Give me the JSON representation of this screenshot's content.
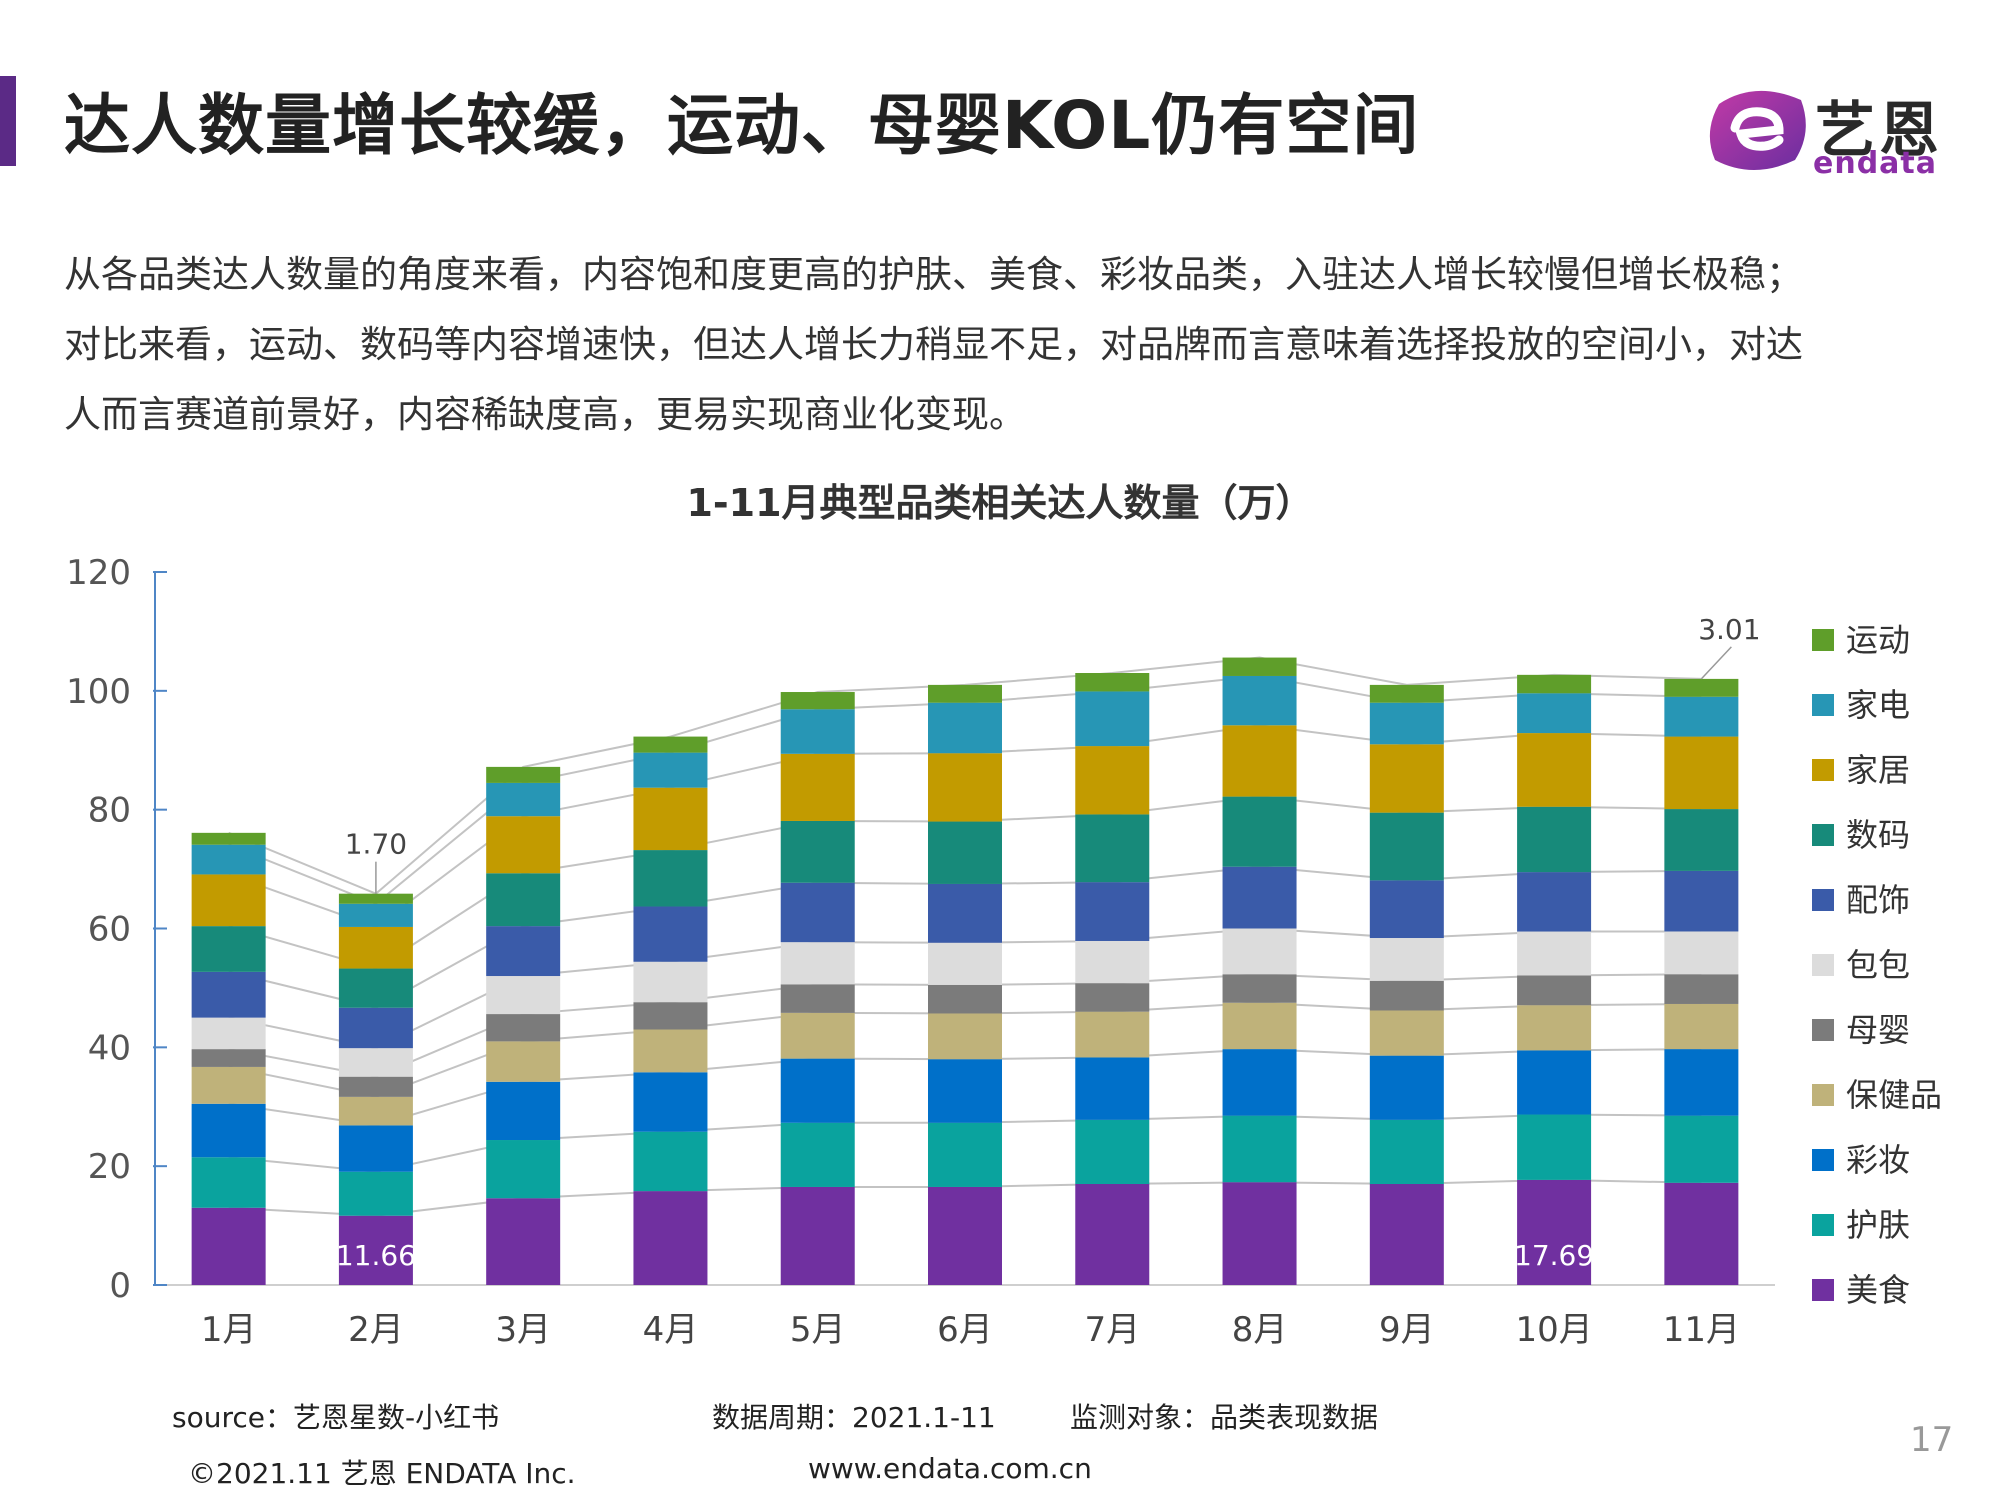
{
  "header": {
    "title": "达人数量增长较缓，运动、母婴KOL仍有空间",
    "logo_cn": "艺恩",
    "logo_en": "endata"
  },
  "description": [
    "从各品类达人数量的角度来看，内容饱和度更高的护肤、美食、彩妆品类，入驻达人增长较慢但增长极稳；",
    "对比来看，运动、数码等内容增速快，但达人增长力稍显不足，对品牌而言意味着选择投放的空间小，对达",
    "人而言赛道前景好，内容稀缺度高，更易实现商业化变现。"
  ],
  "chart_data": {
    "type": "bar",
    "stacked": true,
    "title": "1-11月典型品类相关达人数量（万）",
    "categories": [
      "1月",
      "2月",
      "3月",
      "4月",
      "5月",
      "6月",
      "7月",
      "8月",
      "9月",
      "10月",
      "11月"
    ],
    "ylim": [
      0,
      120
    ],
    "yticks": [
      "0",
      "20",
      "40",
      "60",
      "80",
      "100",
      "120"
    ],
    "series": [
      {
        "name": "美食",
        "color": "#7030a0",
        "values": [
          13.0,
          11.66,
          14.6,
          15.8,
          16.5,
          16.5,
          17.0,
          17.3,
          17.0,
          17.69,
          17.2
        ]
      },
      {
        "name": "护肤",
        "color": "#0aa39e",
        "values": [
          8.5,
          7.4,
          9.8,
          10.0,
          10.8,
          10.8,
          10.8,
          11.2,
          10.8,
          11.0,
          11.3
        ]
      },
      {
        "name": "彩妆",
        "color": "#0070c9",
        "values": [
          9.0,
          7.8,
          9.8,
          10.0,
          10.8,
          10.7,
          10.5,
          11.2,
          10.8,
          10.8,
          11.2
        ]
      },
      {
        "name": "保健品",
        "color": "#bfb27a",
        "values": [
          6.2,
          4.8,
          6.8,
          7.2,
          7.7,
          7.7,
          7.7,
          7.8,
          7.6,
          7.6,
          7.6
        ]
      },
      {
        "name": "母婴",
        "color": "#7b7b7b",
        "values": [
          3.0,
          3.4,
          4.6,
          4.6,
          4.8,
          4.8,
          4.8,
          4.8,
          5.0,
          5.0,
          5.0
        ]
      },
      {
        "name": "包包",
        "color": "#dcdcdc",
        "values": [
          5.3,
          4.8,
          6.4,
          6.8,
          7.1,
          7.1,
          7.1,
          7.7,
          7.2,
          7.4,
          7.2
        ]
      },
      {
        "name": "配饰",
        "color": "#3a5ba9",
        "values": [
          7.7,
          6.8,
          8.4,
          9.3,
          10.0,
          9.9,
          9.9,
          10.4,
          9.7,
          10.0,
          10.2
        ]
      },
      {
        "name": "数码",
        "color": "#178a7a",
        "values": [
          7.7,
          6.6,
          8.9,
          9.5,
          10.4,
          10.5,
          11.4,
          11.8,
          11.4,
          11.0,
          10.4
        ]
      },
      {
        "name": "家居",
        "color": "#c29b00",
        "values": [
          8.7,
          7.0,
          9.6,
          10.5,
          11.3,
          11.5,
          11.5,
          12.0,
          11.5,
          12.4,
          12.2
        ]
      },
      {
        "name": "家电",
        "color": "#2796b5",
        "values": [
          5.0,
          3.9,
          5.6,
          5.9,
          7.5,
          8.5,
          9.2,
          8.3,
          7.0,
          6.7,
          6.7
        ]
      },
      {
        "name": "运动",
        "color": "#5f9e2a",
        "values": [
          2.0,
          1.7,
          2.7,
          2.7,
          2.9,
          3.0,
          3.1,
          3.1,
          3.0,
          3.1,
          3.01
        ]
      }
    ],
    "data_labels": [
      {
        "text": "1.70",
        "series": "运动",
        "category": "2月"
      },
      {
        "text": "11.66",
        "series": "美食",
        "category": "2月"
      },
      {
        "text": "17.69",
        "series": "美食",
        "category": "10月"
      },
      {
        "text": "3.01",
        "series": "运动",
        "category": "11月"
      }
    ],
    "legend_position": "right",
    "grid": false
  },
  "footer": {
    "source": "source：艺恩星数-小红书",
    "period": "数据周期：2021.1-11",
    "object": "监测对象：品类表现数据",
    "copyright": "©2021.11 艺恩 ENDATA Inc.",
    "url": "www.endata.com.cn",
    "page": "17"
  }
}
